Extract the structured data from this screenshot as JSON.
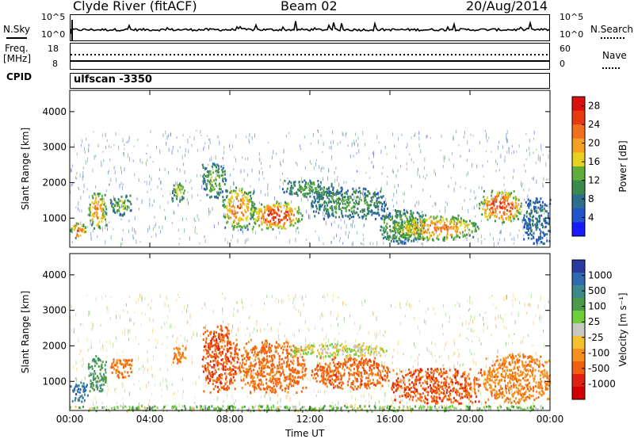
{
  "header": {
    "station": "Clyde River (fitACF)",
    "beam": "Beam 02",
    "date": "20/Aug/2014"
  },
  "status_panels": {
    "nsky": {
      "label": "N.Sky",
      "ticks": [
        "10^5",
        "10^0"
      ]
    },
    "nsearch": {
      "label": "N.Search",
      "ticks": [
        "10^5",
        "10^0"
      ]
    },
    "freq": {
      "label_top": "Freq.",
      "label_unit": "[MHz]",
      "ticks": [
        "18",
        "8"
      ]
    },
    "nave": {
      "label": "Nave",
      "ticks": [
        "60",
        "0"
      ]
    },
    "cpid": {
      "label": "CPID",
      "value": "ulfscan -3350"
    }
  },
  "chart_data": [
    {
      "type": "heatmap",
      "panel": "power",
      "ylabel": "Slant Range [km]",
      "xlabel": "Time UT",
      "xlim": [
        "00:00",
        "24:00"
      ],
      "ylim": [
        180,
        4600
      ],
      "x_ticks": [
        "00:00",
        "04:00",
        "08:00",
        "12:00",
        "16:00",
        "20:00",
        "00:00"
      ],
      "y_ticks": [
        1000,
        2000,
        3000,
        4000
      ],
      "colorbar": {
        "label": "Power [dB]",
        "ticks": [
          4,
          8,
          12,
          16,
          20,
          24,
          28
        ],
        "range": [
          0,
          30
        ],
        "colors": [
          "#1a1aff",
          "#2255cc",
          "#2e6e8e",
          "#3a8a4a",
          "#5fae3a",
          "#e8d020",
          "#f5a020",
          "#f07020",
          "#e83a10",
          "#dd1010"
        ]
      },
      "features": [
        {
          "t0": 0.0,
          "t1": 0.8,
          "r0": 450,
          "r1": 900,
          "level": 24
        },
        {
          "t0": 0.9,
          "t1": 1.8,
          "r0": 700,
          "r1": 1750,
          "level": 22
        },
        {
          "t0": 2.0,
          "t1": 3.1,
          "r0": 1100,
          "r1": 1700,
          "level": 14
        },
        {
          "t0": 5.1,
          "t1": 5.8,
          "r0": 1500,
          "r1": 2100,
          "level": 16
        },
        {
          "t0": 6.6,
          "t1": 7.8,
          "r0": 1600,
          "r1": 2600,
          "level": 14
        },
        {
          "t0": 7.6,
          "t1": 9.2,
          "r0": 700,
          "r1": 1900,
          "level": 22
        },
        {
          "t0": 9.0,
          "t1": 11.6,
          "r0": 700,
          "r1": 1500,
          "level": 26
        },
        {
          "t0": 10.6,
          "t1": 13.2,
          "r0": 1600,
          "r1": 2100,
          "level": 12
        },
        {
          "t0": 12.0,
          "t1": 15.8,
          "r0": 1000,
          "r1": 1900,
          "level": 12
        },
        {
          "t0": 15.4,
          "t1": 17.8,
          "r0": 300,
          "r1": 1300,
          "level": 14
        },
        {
          "t0": 16.2,
          "t1": 20.4,
          "r0": 400,
          "r1": 1100,
          "level": 22
        },
        {
          "t0": 20.4,
          "t1": 22.6,
          "r0": 900,
          "r1": 1800,
          "level": 26
        },
        {
          "t0": 22.6,
          "t1": 24.0,
          "r0": 300,
          "r1": 1600,
          "level": 8
        }
      ]
    },
    {
      "type": "heatmap",
      "panel": "velocity",
      "ylabel": "Slant Range [km]",
      "xlabel": "Time UT",
      "xlim": [
        "00:00",
        "24:00"
      ],
      "ylim": [
        180,
        4600
      ],
      "x_ticks": [
        "00:00",
        "04:00",
        "08:00",
        "12:00",
        "16:00",
        "20:00",
        "00:00"
      ],
      "y_ticks": [
        1000,
        2000,
        3000,
        4000
      ],
      "colorbar": {
        "label": "Velocity [m s⁻¹]",
        "ticks": [
          "1000",
          "500",
          "100",
          "25",
          "-25",
          "-100",
          "-500",
          "-1000"
        ],
        "colors": [
          "#2a3aa0",
          "#2f6ab0",
          "#3a8a8a",
          "#4a9a4a",
          "#6fcf3a",
          "#c8c8c0",
          "#f5c030",
          "#f59020",
          "#f06010",
          "#e02010",
          "#d00000"
        ]
      },
      "features": [
        {
          "t0": 0.0,
          "t1": 0.9,
          "r0": 450,
          "r1": 1000,
          "velocity": 700
        },
        {
          "t0": 0.9,
          "t1": 1.8,
          "r0": 700,
          "r1": 1750,
          "velocity": 200
        },
        {
          "t0": 2.0,
          "t1": 3.1,
          "r0": 1100,
          "r1": 1700,
          "velocity": -300
        },
        {
          "t0": 5.1,
          "t1": 5.8,
          "r0": 1500,
          "r1": 2100,
          "velocity": -200
        },
        {
          "t0": 6.6,
          "t1": 8.4,
          "r0": 700,
          "r1": 2600,
          "velocity": -400
        },
        {
          "t0": 8.4,
          "t1": 11.8,
          "r0": 700,
          "r1": 2200,
          "velocity": -300
        },
        {
          "t0": 11.0,
          "t1": 15.8,
          "r0": 1700,
          "r1": 2100,
          "velocity": 0
        },
        {
          "t0": 12.0,
          "t1": 16.0,
          "r0": 800,
          "r1": 1700,
          "velocity": -350
        },
        {
          "t0": 16.0,
          "t1": 20.6,
          "r0": 400,
          "r1": 1400,
          "velocity": -400
        },
        {
          "t0": 20.6,
          "t1": 24.0,
          "r0": 400,
          "r1": 1800,
          "velocity": -200
        },
        {
          "t0": 0.0,
          "t1": 24.0,
          "r0": 180,
          "r1": 350,
          "velocity": 60
        }
      ]
    }
  ]
}
